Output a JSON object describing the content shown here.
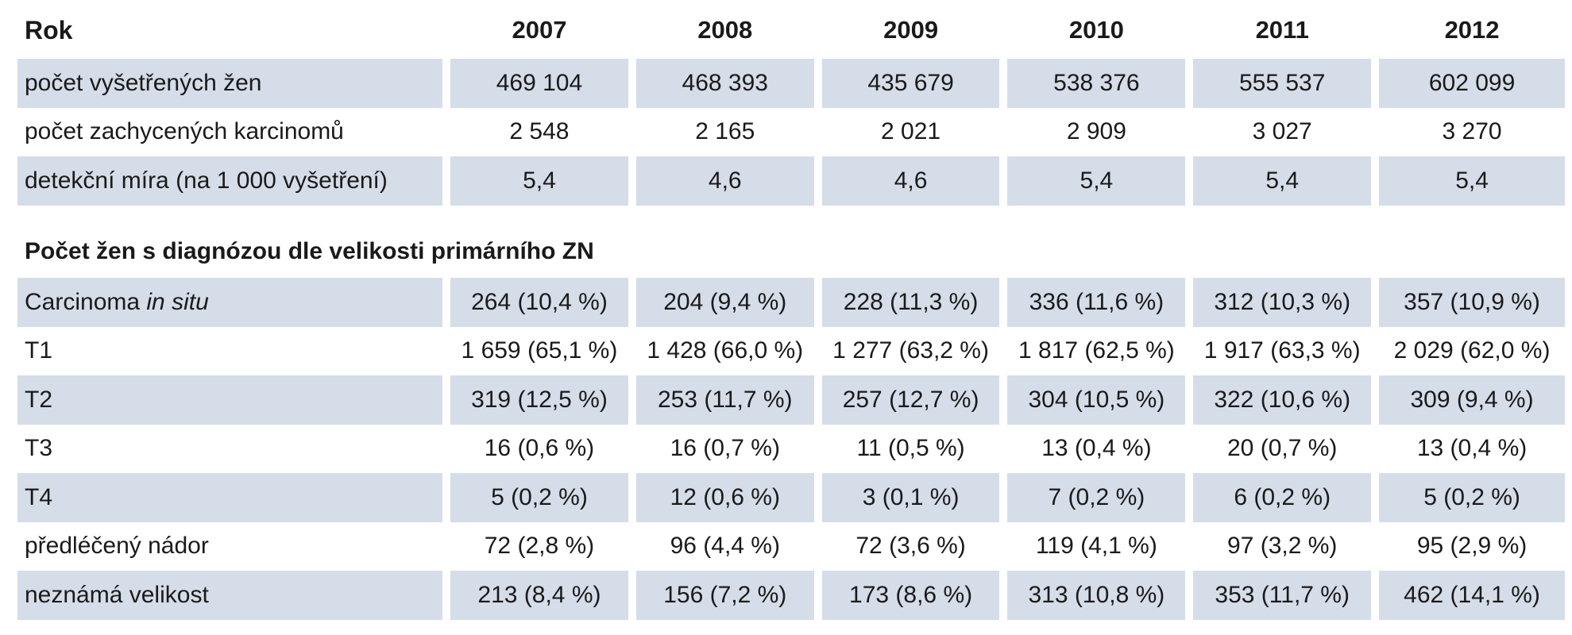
{
  "years": [
    "2007",
    "2008",
    "2009",
    "2010",
    "2011",
    "2012"
  ],
  "top_table": {
    "header_label": "Rok",
    "rows": [
      {
        "label": "počet vyšetřených žen",
        "values": [
          "469 104",
          "468 393",
          "435 679",
          "538 376",
          "555 537",
          "602 099"
        ]
      },
      {
        "label": "počet zachycených karcinomů",
        "values": [
          "2 548",
          "2 165",
          "2 021",
          "2 909",
          "3 027",
          "3 270"
        ]
      },
      {
        "label": "detekční míra (na 1 000 vyšetření)",
        "values": [
          "5,4",
          "4,6",
          "4,6",
          "5,4",
          "5,4",
          "5,4"
        ]
      }
    ]
  },
  "section_title": "Počet žen s diagnózou dle velikosti primárního ZN",
  "bottom_table": {
    "rows": [
      {
        "label_prefix": "Carcinoma ",
        "label_italic": "in situ",
        "values": [
          "264 (10,4 %)",
          "204 (9,4 %)",
          "228 (11,3 %)",
          "336 (11,6 %)",
          "312 (10,3 %)",
          "357 (10,9 %)"
        ]
      },
      {
        "label": "T1",
        "values": [
          "1 659 (65,1 %)",
          "1 428 (66,0 %)",
          "1 277 (63,2 %)",
          "1 817 (62,5 %)",
          "1 917 (63,3 %)",
          "2 029 (62,0 %)"
        ]
      },
      {
        "label": "T2",
        "values": [
          "319 (12,5 %)",
          "253 (11,7 %)",
          "257 (12,7 %)",
          "304 (10,5 %)",
          "322 (10,6 %)",
          "309 (9,4 %)"
        ]
      },
      {
        "label": "T3",
        "values": [
          "16 (0,6 %)",
          "16 (0,7 %)",
          "11 (0,5 %)",
          "13 (0,4 %)",
          "20 (0,7 %)",
          "13 (0,4 %)"
        ]
      },
      {
        "label": "T4",
        "values": [
          "5 (0,2 %)",
          "12 (0,6 %)",
          "3 (0,1 %)",
          "7 (0,2 %)",
          "6 (0,2 %)",
          "5 (0,2 %)"
        ]
      },
      {
        "label": "předléčený nádor",
        "values": [
          "72 (2,8 %)",
          "96 (4,4 %)",
          "72 (3,6 %)",
          "119 (4,1 %)",
          "97 (3,2 %)",
          "95 (2,9 %)"
        ]
      },
      {
        "label": "neznámá velikost",
        "values": [
          "213 (8,4 %)",
          "156 (7,2 %)",
          "173 (8,6 %)",
          "313 (10,8 %)",
          "353 (11,7 %)",
          "462 (14,1 %)"
        ]
      }
    ]
  },
  "colors": {
    "row_shade": "#d5dde9",
    "text": "#1a1a1a"
  }
}
